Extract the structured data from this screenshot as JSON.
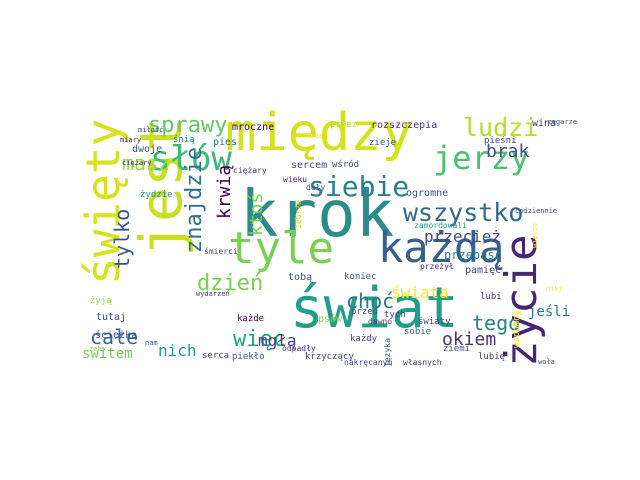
{
  "word_cloud": {
    "words": [
      {
        "text": "krok",
        "color": "#2c8c8c",
        "vertical": false
      },
      {
        "text": "między",
        "color": "#d2e21b",
        "vertical": false
      },
      {
        "text": "jest",
        "color": "#c8e020",
        "vertical": true
      },
      {
        "text": "tyle",
        "color": "#7ad151",
        "vertical": false
      },
      {
        "text": "każdą",
        "color": "#35608d",
        "vertical": false
      },
      {
        "text": "świat",
        "color": "#1f9e89",
        "vertical": false
      },
      {
        "text": "święty",
        "color": "#d8e219",
        "vertical": true
      },
      {
        "text": "życie",
        "color": "#482475",
        "vertical": true
      },
      {
        "text": "słów",
        "color": "#3aba76",
        "vertical": false
      },
      {
        "text": "jerzy",
        "color": "#4ac16d",
        "vertical": false
      },
      {
        "text": "wszystko",
        "color": "#31688e",
        "vertical": false
      },
      {
        "text": "siebie",
        "color": "#26818e",
        "vertical": false
      },
      {
        "text": "ludzi",
        "color": "#b5de2b",
        "vertical": false
      },
      {
        "text": "sprawy",
        "color": "#5ec962",
        "vertical": false
      },
      {
        "text": "znajdzie",
        "color": "#2d708e",
        "vertical": true
      },
      {
        "text": "tylko",
        "color": "#39568c",
        "vertical": true
      },
      {
        "text": "masz",
        "color": "#9bd93c",
        "vertical": false
      },
      {
        "text": "krwią",
        "color": "#440154",
        "vertical": true
      },
      {
        "text": "ktoś",
        "color": "#7ad151",
        "vertical": true
      },
      {
        "text": "brak",
        "color": "#3b528b",
        "vertical": false
      },
      {
        "text": "dzień",
        "color": "#7ad151",
        "vertical": false
      },
      {
        "text": "choć",
        "color": "#2a788e",
        "vertical": false
      },
      {
        "text": "więc",
        "color": "#20a486",
        "vertical": false
      },
      {
        "text": "całe",
        "color": "#31688e",
        "vertical": false
      },
      {
        "text": "tego",
        "color": "#25858e",
        "vertical": false
      },
      {
        "text": "przecież",
        "color": "#3e4a89",
        "vertical": false
      },
      {
        "text": "świata",
        "color": "#fde725",
        "vertical": false
      },
      {
        "text": "okiem",
        "color": "#46337e",
        "vertical": false
      },
      {
        "text": "mgłą",
        "color": "#433e85",
        "vertical": false
      },
      {
        "text": "nich",
        "color": "#1f9e89",
        "vertical": false
      },
      {
        "text": "switem",
        "color": "#73d056",
        "vertical": false
      },
      {
        "text": "jeśli",
        "color": "#2a788e",
        "vertical": false
      },
      {
        "text": "mroczne",
        "color": "#440154",
        "vertical": false
      },
      {
        "text": "rozszczepia",
        "color": "#46327e",
        "vertical": false
      },
      {
        "text": "ogromne",
        "color": "#3b528b",
        "vertical": false
      },
      {
        "text": "wina",
        "color": "#46337e",
        "vertical": false
      },
      {
        "text": "pieśni",
        "color": "#404688",
        "vertical": false
      },
      {
        "text": "pies",
        "color": "#2d708e",
        "vertical": false
      },
      {
        "text": "śnią",
        "color": "#26818e",
        "vertical": false
      },
      {
        "text": "dwoje",
        "color": "#3b528b",
        "vertical": false
      },
      {
        "text": "żydzie",
        "color": "#21918c",
        "vertical": false
      },
      {
        "text": "zieje",
        "color": "#3b528b",
        "vertical": false
      },
      {
        "text": "przez",
        "color": "#b5de2b",
        "vertical": false
      },
      {
        "text": "sercem",
        "color": "#404688",
        "vertical": false
      },
      {
        "text": "wśród",
        "color": "#3e4a89",
        "vertical": false
      },
      {
        "text": "przepaść",
        "color": "#26818e",
        "vertical": false
      },
      {
        "text": "pamięć",
        "color": "#414487",
        "vertical": false
      },
      {
        "text": "tobą",
        "color": "#365c8d",
        "vertical": false
      },
      {
        "text": "koniec",
        "color": "#3b528b",
        "vertical": false
      },
      {
        "text": "przed",
        "color": "#3b528b",
        "vertical": false
      },
      {
        "text": "tych",
        "color": "#433e85",
        "vertical": false
      },
      {
        "text": "sobie",
        "color": "#33638d",
        "vertical": false
      },
      {
        "text": "lubi",
        "color": "#46327e",
        "vertical": false
      },
      {
        "text": "psów",
        "color": "#8fd744",
        "vertical": false
      },
      {
        "text": "światy",
        "color": "#404688",
        "vertical": false
      },
      {
        "text": "każdy",
        "color": "#414487",
        "vertical": false
      },
      {
        "text": "każde",
        "color": "#440154",
        "vertical": false
      },
      {
        "text": "tutaj",
        "color": "#3e4a89",
        "vertical": false
      },
      {
        "text": "ścieżką",
        "color": "#3b528b",
        "vertical": false
      },
      {
        "text": "piekło",
        "color": "#38588c",
        "vertical": false
      },
      {
        "text": "serca",
        "color": "#46327e",
        "vertical": false
      },
      {
        "text": "krzyczący",
        "color": "#3e4a89",
        "vertical": false
      },
      {
        "text": "lubię",
        "color": "#443983",
        "vertical": false
      },
      {
        "text": "ziemi",
        "color": "#3b528b",
        "vertical": false
      },
      {
        "text": "wspomnę",
        "color": "#fde725",
        "vertical": true
      },
      {
        "text": "żyją",
        "color": "#a0da39",
        "vertical": false
      },
      {
        "text": "nakręcanym",
        "color": "#3e4a89",
        "vertical": false
      },
      {
        "text": "własnych",
        "color": "#443a83",
        "vertical": false
      },
      {
        "text": "odpadły",
        "color": "#46327e",
        "vertical": false
      },
      {
        "text": "przeżył",
        "color": "#46337e",
        "vertical": false
      },
      {
        "text": "zamordowali",
        "color": "#1f9e89",
        "vertical": false
      },
      {
        "text": "ciężary",
        "color": "#433e85",
        "vertical": false
      },
      {
        "text": "śmierci",
        "color": "#414487",
        "vertical": false
      },
      {
        "text": "żebrze",
        "color": "#c8e020",
        "vertical": true
      },
      {
        "text": "dały",
        "color": "#3b528b",
        "vertical": false
      },
      {
        "text": "języka",
        "color": "#3b528b",
        "vertical": true
      },
      {
        "text": "dawno",
        "color": "#46337e",
        "vertical": false
      },
      {
        "text": "wieku",
        "color": "#482475",
        "vertical": false
      },
      {
        "text": "ciężary",
        "color": "#482878",
        "vertical": false
      },
      {
        "text": "miary",
        "color": "#481f70",
        "vertical": false
      },
      {
        "text": "miłość",
        "color": "#3e4a89",
        "vertical": false
      },
      {
        "text": "nam",
        "color": "#3b528b",
        "vertical": false
      },
      {
        "text": "zeby",
        "color": "#7ad151",
        "vertical": false
      },
      {
        "text": "wydarzeń",
        "color": "#3e4a89",
        "vertical": false
      },
      {
        "text": "codziennie",
        "color": "#3b528b",
        "vertical": false
      },
      {
        "text": "nikt",
        "color": "#fde725",
        "vertical": false
      },
      {
        "text": "woła",
        "color": "#3e4a89",
        "vertical": false
      },
      {
        "text": "prawie",
        "color": "#fde725",
        "vertical": false
      },
      {
        "text": "zegarze",
        "color": "#3b528b",
        "vertical": false
      },
      {
        "text": "wiersz",
        "color": "#fde725",
        "vertical": true
      }
    ]
  }
}
